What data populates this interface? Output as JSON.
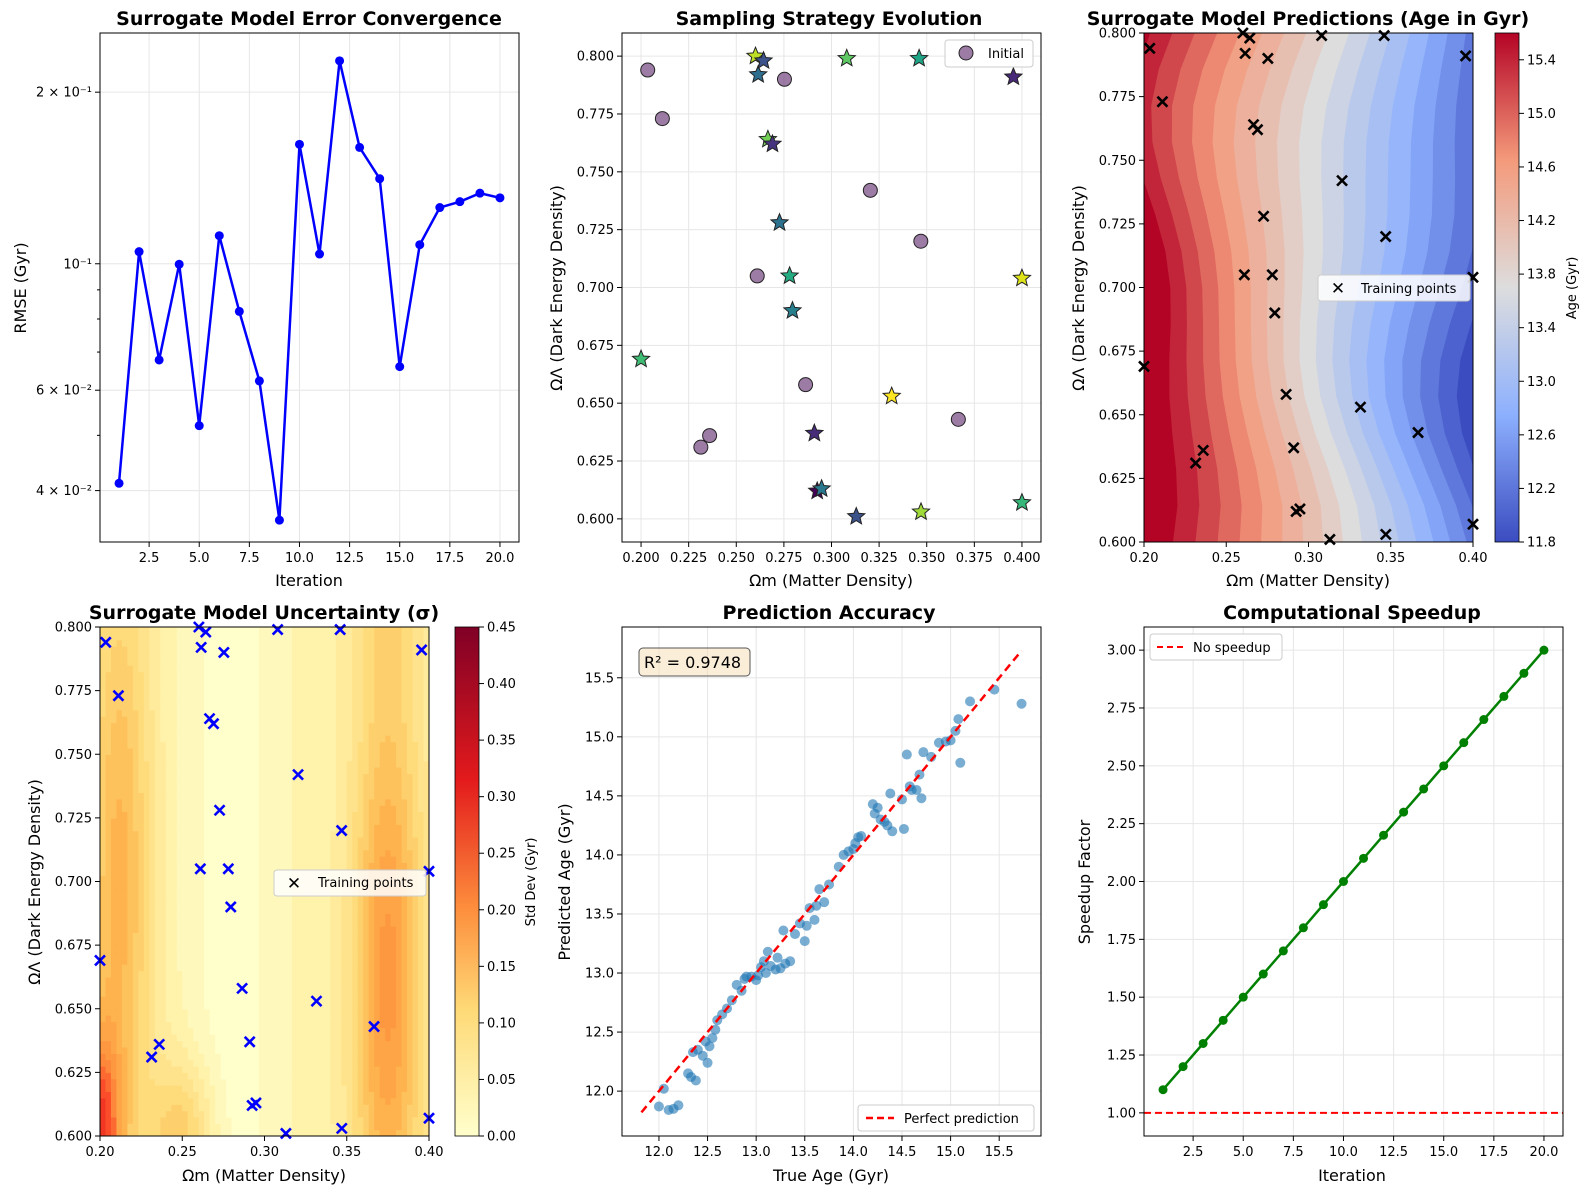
{
  "chart_data": [
    {
      "type": "line",
      "title": "Surrogate Model Error Convergence",
      "xlabel": "Iteration",
      "ylabel": "RMSE (Gyr)",
      "yscale": "log",
      "xlim": [
        0.05,
        20.95
      ],
      "ylim": [
        0.0325,
        0.254
      ],
      "xticks": [
        2.5,
        5.0,
        7.5,
        10.0,
        12.5,
        15.0,
        17.5,
        20.0
      ],
      "xtick_labels": [
        "2.5",
        "5.0",
        "7.5",
        "10.0",
        "12.5",
        "15.0",
        "17.5",
        "20.0"
      ],
      "yticks_major": [
        {
          "value": 0.04,
          "label": "4 × 10⁻²"
        },
        {
          "value": 0.06,
          "label": "6 × 10⁻²"
        },
        {
          "value": 0.1,
          "label": "10⁻¹"
        },
        {
          "value": 0.2,
          "label": "2 × 10⁻¹"
        }
      ],
      "yticks_minor": [
        0.03,
        0.05,
        0.07,
        0.08,
        0.09
      ],
      "color": "#0000ff",
      "x": [
        1,
        2,
        3,
        4,
        5,
        6,
        7,
        8,
        9,
        10,
        11,
        12,
        13,
        14,
        15,
        16,
        17,
        18,
        19,
        20
      ],
      "y": [
        0.0412,
        0.105,
        0.0678,
        0.0998,
        0.052,
        0.112,
        0.0825,
        0.0623,
        0.0355,
        0.162,
        0.104,
        0.227,
        0.16,
        0.141,
        0.066,
        0.108,
        0.1255,
        0.1285,
        0.133,
        0.1305
      ]
    },
    {
      "type": "scatter",
      "title": "Sampling Strategy Evolution",
      "xlabel": "Ωm (Matter Density)",
      "ylabel": "ΩΛ (Dark Energy Density)",
      "xlim": [
        0.19,
        0.41
      ],
      "ylim": [
        0.59,
        0.81
      ],
      "xticks": [
        0.2,
        0.225,
        0.25,
        0.275,
        0.3,
        0.325,
        0.35,
        0.375,
        0.4
      ],
      "xtick_labels": [
        "0.200",
        "0.225",
        "0.250",
        "0.275",
        "0.300",
        "0.325",
        "0.350",
        "0.375",
        "0.400"
      ],
      "yticks": [
        0.6,
        0.625,
        0.65,
        0.675,
        0.7,
        0.725,
        0.75,
        0.775,
        0.8
      ],
      "ytick_labels": [
        "0.600",
        "0.625",
        "0.650",
        "0.675",
        "0.700",
        "0.725",
        "0.750",
        "0.775",
        "0.800"
      ],
      "legend": {
        "label": "Initial",
        "position": "top-right",
        "color": "#7b4f86"
      },
      "initial_points": [
        [
          0.2035,
          0.794
        ],
        [
          0.2112,
          0.773
        ],
        [
          0.2314,
          0.631
        ],
        [
          0.236,
          0.636
        ],
        [
          0.261,
          0.705
        ],
        [
          0.2753,
          0.79
        ],
        [
          0.2864,
          0.658
        ],
        [
          0.3204,
          0.742
        ],
        [
          0.3469,
          0.72
        ],
        [
          0.3666,
          0.643
        ]
      ],
      "new_points": [
        {
          "x": 0.2,
          "y": 0.669,
          "color": "#3fbc73"
        },
        {
          "x": 0.2601,
          "y": 0.8,
          "color": "#bddf26"
        },
        {
          "x": 0.2615,
          "y": 0.792,
          "color": "#2e6e8e"
        },
        {
          "x": 0.2643,
          "y": 0.798,
          "color": "#3b528b"
        },
        {
          "x": 0.2666,
          "y": 0.764,
          "color": "#73d056"
        },
        {
          "x": 0.269,
          "y": 0.762,
          "color": "#46337f"
        },
        {
          "x": 0.2727,
          "y": 0.728,
          "color": "#2c728e"
        },
        {
          "x": 0.278,
          "y": 0.705,
          "color": "#25ab82"
        },
        {
          "x": 0.2795,
          "y": 0.69,
          "color": "#277f8e"
        },
        {
          "x": 0.291,
          "y": 0.637,
          "color": "#472c7a"
        },
        {
          "x": 0.2925,
          "y": 0.612,
          "color": "#440154"
        },
        {
          "x": 0.2948,
          "y": 0.613,
          "color": "#2a788e"
        },
        {
          "x": 0.308,
          "y": 0.799,
          "color": "#5ec962"
        },
        {
          "x": 0.313,
          "y": 0.601,
          "color": "#3b528b"
        },
        {
          "x": 0.3316,
          "y": 0.653,
          "color": "#fde725"
        },
        {
          "x": 0.346,
          "y": 0.799,
          "color": "#20a486"
        },
        {
          "x": 0.347,
          "y": 0.603,
          "color": "#a0da39"
        },
        {
          "x": 0.3955,
          "y": 0.791,
          "color": "#482878"
        },
        {
          "x": 0.4,
          "y": 0.704,
          "color": "#dde318"
        },
        {
          "x": 0.4,
          "y": 0.607,
          "color": "#35b779"
        }
      ]
    },
    {
      "type": "heatmap",
      "title": "Surrogate Model Predictions (Age in Gyr)",
      "xlabel": "Ωm (Matter Density)",
      "ylabel": "ΩΛ (Dark Energy Density)",
      "xlim": [
        0.2,
        0.4
      ],
      "ylim": [
        0.6,
        0.8
      ],
      "xticks": [
        0.2,
        0.25,
        0.3,
        0.35,
        0.4
      ],
      "xtick_labels": [
        "0.20",
        "0.25",
        "0.30",
        "0.35",
        "0.40"
      ],
      "yticks": [
        0.6,
        0.625,
        0.65,
        0.675,
        0.7,
        0.725,
        0.75,
        0.775,
        0.8
      ],
      "ytick_labels": [
        "0.600",
        "0.625",
        "0.650",
        "0.675",
        "0.700",
        "0.725",
        "0.750",
        "0.775",
        "0.800"
      ],
      "colormap": "coolwarm",
      "colorbar_label": "Age (Gyr)",
      "colorbar_range": [
        11.8,
        15.6
      ],
      "colorbar_ticks": [
        11.8,
        12.2,
        12.6,
        13.0,
        13.4,
        13.8,
        14.2,
        14.6,
        15.0,
        15.4
      ],
      "colorbar_tick_labels": [
        "11.8",
        "12.2",
        "12.6",
        "13.0",
        "13.4",
        "13.8",
        "14.2",
        "14.6",
        "15.0",
        "15.4"
      ],
      "legend": {
        "label": "Training points",
        "position": "center-right"
      }
    },
    {
      "type": "heatmap",
      "title": "Surrogate Model Uncertainty (σ)",
      "xlabel": "Ωm (Matter Density)",
      "ylabel": "ΩΛ (Dark Energy Density)",
      "xlim": [
        0.2,
        0.4
      ],
      "ylim": [
        0.6,
        0.8
      ],
      "xticks": [
        0.2,
        0.25,
        0.3,
        0.35,
        0.4
      ],
      "xtick_labels": [
        "0.20",
        "0.25",
        "0.30",
        "0.35",
        "0.40"
      ],
      "yticks": [
        0.6,
        0.625,
        0.65,
        0.675,
        0.7,
        0.725,
        0.75,
        0.775,
        0.8
      ],
      "ytick_labels": [
        "0.600",
        "0.625",
        "0.650",
        "0.675",
        "0.700",
        "0.725",
        "0.750",
        "0.775",
        "0.800"
      ],
      "colormap": "YlOrRd",
      "colorbar_label": "Std Dev (Gyr)",
      "colorbar_range": [
        0.0,
        0.45
      ],
      "colorbar_ticks": [
        0.0,
        0.05,
        0.1,
        0.15,
        0.2,
        0.25,
        0.3,
        0.35,
        0.4,
        0.45
      ],
      "colorbar_tick_labels": [
        "0.00",
        "0.05",
        "0.10",
        "0.15",
        "0.20",
        "0.25",
        "0.30",
        "0.35",
        "0.40",
        "0.45"
      ],
      "legend": {
        "label": "Training points",
        "position": "center-right"
      }
    },
    {
      "type": "scatter",
      "title": "Prediction Accuracy",
      "xlabel": "True Age (Gyr)",
      "ylabel": "Predicted Age (Gyr)",
      "xlim": [
        11.62,
        15.93
      ],
      "ylim": [
        11.62,
        15.93
      ],
      "xticks": [
        12.0,
        12.5,
        13.0,
        13.5,
        14.0,
        14.5,
        15.0,
        15.5
      ],
      "xtick_labels": [
        "12.0",
        "12.5",
        "13.0",
        "13.5",
        "14.0",
        "14.5",
        "15.0",
        "15.5"
      ],
      "yticks": [
        12.0,
        12.5,
        13.0,
        13.5,
        14.0,
        14.5,
        15.0,
        15.5
      ],
      "ytick_labels": [
        "12.0",
        "12.5",
        "13.0",
        "13.5",
        "14.0",
        "14.5",
        "15.0",
        "15.5"
      ],
      "annotation": "R² = 0.9748",
      "reference_line": {
        "label": "Perfect prediction",
        "from": [
          11.82,
          11.82
        ],
        "to": [
          15.73,
          15.73
        ],
        "color": "#ff0000"
      },
      "legend_position": "bottom-right",
      "point_color": "#1f77b4",
      "points": [
        [
          12.0,
          11.87
        ],
        [
          12.05,
          12.02
        ],
        [
          12.1,
          11.84
        ],
        [
          12.15,
          11.85
        ],
        [
          12.2,
          11.88
        ],
        [
          12.3,
          12.15
        ],
        [
          12.33,
          12.12
        ],
        [
          12.35,
          12.33
        ],
        [
          12.38,
          12.09
        ],
        [
          12.4,
          12.35
        ],
        [
          12.45,
          12.3
        ],
        [
          12.48,
          12.42
        ],
        [
          12.5,
          12.24
        ],
        [
          12.52,
          12.38
        ],
        [
          12.55,
          12.45
        ],
        [
          12.58,
          12.52
        ],
        [
          12.6,
          12.6
        ],
        [
          12.65,
          12.65
        ],
        [
          12.7,
          12.7
        ],
        [
          12.75,
          12.77
        ],
        [
          12.8,
          12.9
        ],
        [
          12.85,
          12.85
        ],
        [
          12.88,
          12.95
        ],
        [
          12.9,
          12.97
        ],
        [
          12.95,
          12.97
        ],
        [
          13.0,
          12.94
        ],
        [
          13.02,
          12.98
        ],
        [
          13.05,
          13.05
        ],
        [
          13.08,
          13.1
        ],
        [
          13.1,
          13.0
        ],
        [
          13.12,
          13.18
        ],
        [
          13.15,
          13.06
        ],
        [
          13.2,
          13.03
        ],
        [
          13.22,
          13.13
        ],
        [
          13.25,
          13.04
        ],
        [
          13.28,
          13.36
        ],
        [
          13.3,
          13.08
        ],
        [
          13.35,
          13.1
        ],
        [
          13.4,
          13.33
        ],
        [
          13.45,
          13.42
        ],
        [
          13.5,
          13.27
        ],
        [
          13.52,
          13.4
        ],
        [
          13.55,
          13.55
        ],
        [
          13.6,
          13.45
        ],
        [
          13.62,
          13.57
        ],
        [
          13.65,
          13.71
        ],
        [
          13.7,
          13.6
        ],
        [
          13.75,
          13.75
        ],
        [
          13.85,
          13.9
        ],
        [
          13.9,
          14.0
        ],
        [
          13.95,
          14.03
        ],
        [
          14.0,
          14.05
        ],
        [
          14.02,
          14.1
        ],
        [
          14.05,
          14.15
        ],
        [
          14.08,
          14.16
        ],
        [
          14.2,
          14.43
        ],
        [
          14.22,
          14.35
        ],
        [
          14.25,
          14.4
        ],
        [
          14.28,
          14.3
        ],
        [
          14.32,
          14.28
        ],
        [
          14.35,
          14.25
        ],
        [
          14.38,
          14.52
        ],
        [
          14.4,
          14.2
        ],
        [
          14.5,
          14.47
        ],
        [
          14.52,
          14.22
        ],
        [
          14.55,
          14.85
        ],
        [
          14.58,
          14.58
        ],
        [
          14.6,
          14.55
        ],
        [
          14.65,
          14.55
        ],
        [
          14.68,
          14.68
        ],
        [
          14.7,
          14.48
        ],
        [
          14.72,
          14.87
        ],
        [
          14.8,
          14.83
        ],
        [
          14.88,
          14.95
        ],
        [
          14.95,
          14.96
        ],
        [
          15.0,
          14.97
        ],
        [
          15.05,
          15.05
        ],
        [
          15.08,
          15.15
        ],
        [
          15.1,
          14.78
        ],
        [
          15.2,
          15.3
        ],
        [
          15.45,
          15.4
        ],
        [
          15.73,
          15.28
        ]
      ]
    },
    {
      "type": "line",
      "title": "Computational Speedup",
      "xlabel": "Iteration",
      "ylabel": "Speedup Factor",
      "xlim": [
        0.05,
        20.95
      ],
      "ylim": [
        0.9,
        3.1
      ],
      "xticks": [
        2.5,
        5.0,
        7.5,
        10.0,
        12.5,
        15.0,
        17.5,
        20.0
      ],
      "xtick_labels": [
        "2.5",
        "5.0",
        "7.5",
        "10.0",
        "12.5",
        "15.0",
        "17.5",
        "20.0"
      ],
      "yticks": [
        1.0,
        1.25,
        1.5,
        1.75,
        2.0,
        2.25,
        2.5,
        2.75,
        3.0
      ],
      "ytick_labels": [
        "1.00",
        "1.25",
        "1.50",
        "1.75",
        "2.00",
        "2.25",
        "2.50",
        "2.75",
        "3.00"
      ],
      "color": "#008000",
      "x": [
        1,
        2,
        3,
        4,
        5,
        6,
        7,
        8,
        9,
        10,
        11,
        12,
        13,
        14,
        15,
        16,
        17,
        18,
        19,
        20
      ],
      "y": [
        1.1,
        1.2,
        1.3,
        1.4,
        1.5,
        1.6,
        1.7,
        1.8,
        1.9,
        2.0,
        2.1,
        2.2,
        2.3,
        2.4,
        2.5,
        2.6,
        2.7,
        2.8,
        2.9,
        3.0
      ],
      "reference_line": {
        "label": "No speedup",
        "y": 1.0,
        "color": "#ff0000"
      },
      "legend_position": "top-left"
    }
  ],
  "training_points": [
    [
      0.2,
      0.669
    ],
    [
      0.2035,
      0.794
    ],
    [
      0.2112,
      0.773
    ],
    [
      0.2314,
      0.631
    ],
    [
      0.236,
      0.636
    ],
    [
      0.2601,
      0.8
    ],
    [
      0.261,
      0.705
    ],
    [
      0.2615,
      0.792
    ],
    [
      0.2643,
      0.798
    ],
    [
      0.2666,
      0.764
    ],
    [
      0.269,
      0.762
    ],
    [
      0.2727,
      0.728
    ],
    [
      0.2753,
      0.79
    ],
    [
      0.278,
      0.705
    ],
    [
      0.2795,
      0.69
    ],
    [
      0.2864,
      0.658
    ],
    [
      0.291,
      0.637
    ],
    [
      0.2925,
      0.612
    ],
    [
      0.2948,
      0.613
    ],
    [
      0.308,
      0.799
    ],
    [
      0.313,
      0.601
    ],
    [
      0.3204,
      0.742
    ],
    [
      0.3316,
      0.653
    ],
    [
      0.346,
      0.799
    ],
    [
      0.3469,
      0.72
    ],
    [
      0.347,
      0.603
    ],
    [
      0.3666,
      0.643
    ],
    [
      0.3955,
      0.791
    ],
    [
      0.4,
      0.704
    ],
    [
      0.4,
      0.607
    ]
  ]
}
